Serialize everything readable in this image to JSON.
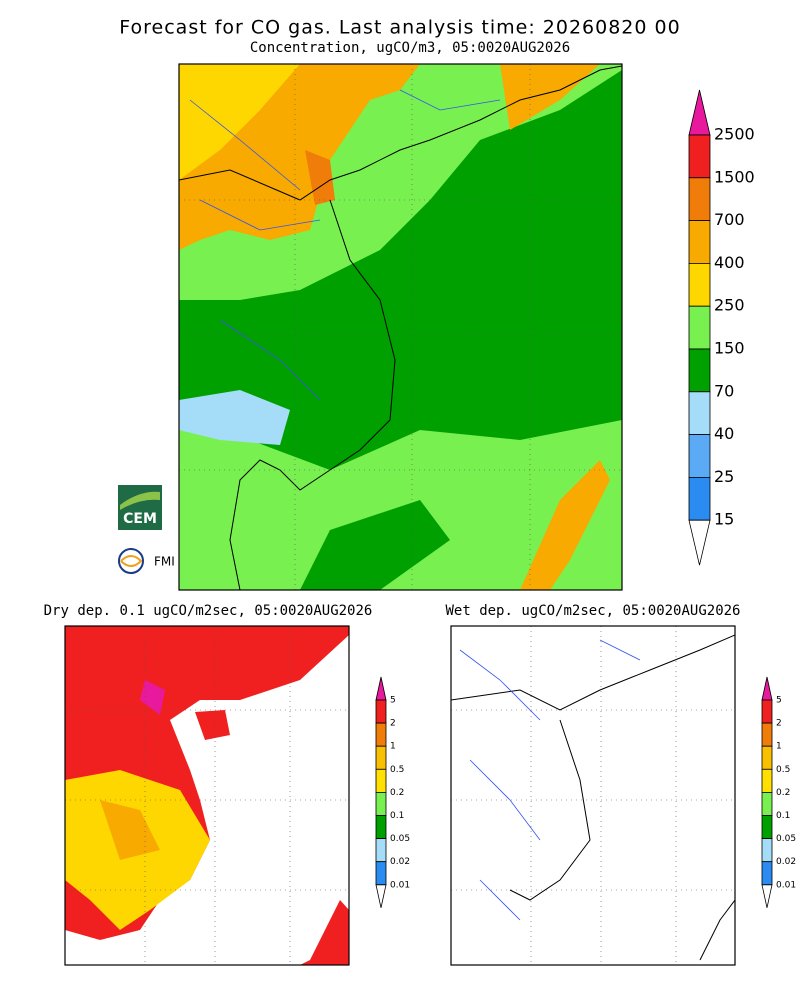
{
  "title": "Forecast for CO gas. Last analysis time: 20260820 00",
  "panels": [
    {
      "title": "Concentration, ugCO/m3, 05:0020AUG2026",
      "legend": {
        "levels": [
          2500,
          1500,
          700,
          400,
          250,
          150,
          70,
          40,
          25,
          15
        ],
        "over_color": "#e8199c",
        "under_color": "#ffffff",
        "colors": [
          "#f02020",
          "#f07d0a",
          "#f8aa00",
          "#ffd700",
          "#78f050",
          "#00a000",
          "#a5dcf8",
          "#5aaaf5",
          "#2a8cf0"
        ]
      }
    },
    {
      "title": "Dry dep. 0.1 ugCO/m2sec, 05:0020AUG2026",
      "legend": {
        "levels": [
          5,
          2,
          1,
          0.5,
          0.2,
          0.1,
          0.05,
          0.02,
          0.01
        ],
        "over_color": "#e8199c",
        "under_color": "#ffffff",
        "colors": [
          "#f02020",
          "#f07d0a",
          "#f8c000",
          "#ffe000",
          "#78f050",
          "#00a000",
          "#a5dcf8",
          "#2a8cf0"
        ]
      }
    },
    {
      "title": "Wet dep. ugCO/m2sec, 05:0020AUG2026",
      "legend": {
        "levels": [
          5,
          2,
          1,
          0.5,
          0.2,
          0.1,
          0.05,
          0.02,
          0.01
        ],
        "over_color": "#e8199c",
        "under_color": "#ffffff",
        "colors": [
          "#f02020",
          "#f07d0a",
          "#f8c000",
          "#ffe000",
          "#78f050",
          "#00a000",
          "#a5dcf8",
          "#2a8cf0"
        ]
      }
    }
  ],
  "logos": [
    "CEM",
    "FMI"
  ]
}
